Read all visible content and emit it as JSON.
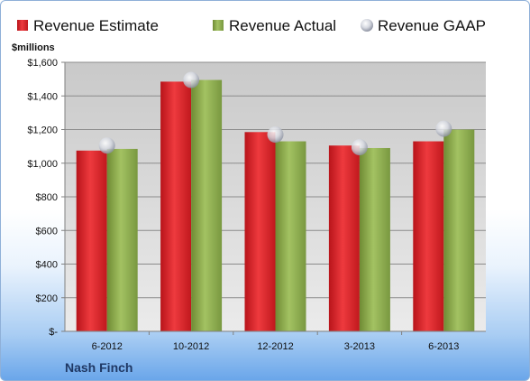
{
  "company": "Nash Finch",
  "chart_data": {
    "type": "bar",
    "ylabel": "$millions",
    "ylim": [
      0,
      1600
    ],
    "yticks": [
      0,
      200,
      400,
      600,
      800,
      1000,
      1200,
      1400,
      1600
    ],
    "ytick_labels": [
      "$-",
      "$200",
      "$400",
      "$600",
      "$800",
      "$1,000",
      "$1,200",
      "$1,400",
      "$1,600"
    ],
    "categories": [
      "6-2012",
      "10-2012",
      "12-2012",
      "3-2013",
      "6-2013"
    ],
    "series": [
      {
        "name": "Revenue Estimate",
        "kind": "bar",
        "color": "#d92024",
        "values": [
          1075,
          1485,
          1185,
          1105,
          1130
        ]
      },
      {
        "name": "Revenue Actual",
        "kind": "bar",
        "color": "#8cab4c",
        "values": [
          1085,
          1495,
          1130,
          1090,
          1200
        ]
      },
      {
        "name": "Revenue GAAP",
        "kind": "marker",
        "color": "#c8ccd6",
        "values": [
          1105,
          1495,
          1170,
          1095,
          1205
        ]
      }
    ],
    "grid": true,
    "legend_position": "top"
  }
}
